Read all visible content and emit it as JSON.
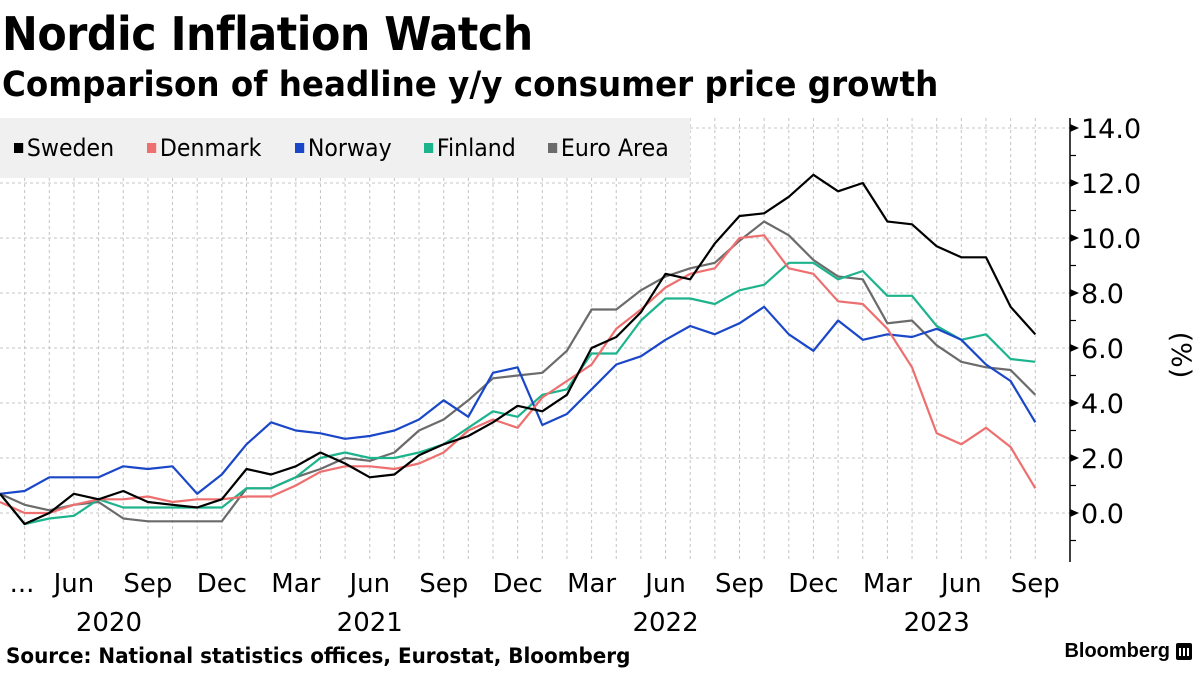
{
  "title": "Nordic Inflation Watch",
  "subtitle": "Comparison of headline y/y consumer price growth",
  "source": "Source: National statistics offices, Eurostat, Bloomberg",
  "brand": {
    "name": "Bloomberg",
    "icon": "bloomberg-chart-icon"
  },
  "chart_data": {
    "type": "line",
    "title": "Nordic Inflation Watch",
    "subtitle": "Comparison of headline y/y consumer price growth",
    "xlabel": "",
    "ylabel": "(%)",
    "ylim": [
      -1.9,
      14.5
    ],
    "yticks": [
      0.0,
      2.0,
      4.0,
      6.0,
      8.0,
      10.0,
      12.0,
      14.0
    ],
    "ytick_labels": [
      "0.0",
      "2.0",
      "4.0",
      "6.0",
      "8.0",
      "10.0",
      "12.0",
      "14.0"
    ],
    "grid": true,
    "legend_position": "top-left",
    "x": [
      "2020-03",
      "2020-04",
      "2020-05",
      "2020-06",
      "2020-07",
      "2020-08",
      "2020-09",
      "2020-10",
      "2020-11",
      "2020-12",
      "2021-01",
      "2021-02",
      "2021-03",
      "2021-04",
      "2021-05",
      "2021-06",
      "2021-07",
      "2021-08",
      "2021-09",
      "2021-10",
      "2021-11",
      "2021-12",
      "2022-01",
      "2022-02",
      "2022-03",
      "2022-04",
      "2022-05",
      "2022-06",
      "2022-07",
      "2022-08",
      "2022-09",
      "2022-10",
      "2022-11",
      "2022-12",
      "2023-01",
      "2023-02",
      "2023-03",
      "2023-04",
      "2023-05",
      "2023-06",
      "2023-07",
      "2023-08",
      "2023-09"
    ],
    "xtick_labels": [
      {
        "index": 0,
        "label": "..."
      },
      {
        "index": 3,
        "label": "Jun"
      },
      {
        "index": 6,
        "label": "Sep"
      },
      {
        "index": 9,
        "label": "Dec"
      },
      {
        "index": 12,
        "label": "Mar"
      },
      {
        "index": 15,
        "label": "Jun"
      },
      {
        "index": 18,
        "label": "Sep"
      },
      {
        "index": 21,
        "label": "Dec"
      },
      {
        "index": 24,
        "label": "Mar"
      },
      {
        "index": 27,
        "label": "Jun"
      },
      {
        "index": 30,
        "label": "Sep"
      },
      {
        "index": 33,
        "label": "Dec"
      },
      {
        "index": 36,
        "label": "Mar"
      },
      {
        "index": 39,
        "label": "Jun"
      },
      {
        "index": 42,
        "label": "Sep"
      }
    ],
    "year_labels": [
      {
        "index": 4.5,
        "label": "2020"
      },
      {
        "index": 15,
        "label": "2021"
      },
      {
        "index": 27,
        "label": "2022"
      },
      {
        "index": 38,
        "label": "2023"
      }
    ],
    "series": [
      {
        "name": "Sweden",
        "color": "#000000",
        "values": [
          0.7,
          -0.4,
          0.0,
          0.7,
          0.5,
          0.8,
          0.4,
          0.3,
          0.2,
          0.5,
          1.6,
          1.4,
          1.7,
          2.2,
          1.8,
          1.3,
          1.4,
          2.1,
          2.5,
          2.8,
          3.3,
          3.9,
          3.7,
          4.3,
          6.0,
          6.4,
          7.3,
          8.7,
          8.5,
          9.8,
          10.8,
          10.9,
          11.5,
          12.3,
          11.7,
          12.0,
          10.6,
          10.5,
          9.7,
          9.3,
          9.3,
          7.5,
          6.5
        ]
      },
      {
        "name": "Denmark",
        "color": "#ee6f6f",
        "values": [
          0.4,
          0.0,
          0.0,
          0.3,
          0.5,
          0.5,
          0.6,
          0.4,
          0.5,
          0.5,
          0.6,
          0.6,
          1.0,
          1.5,
          1.7,
          1.7,
          1.6,
          1.8,
          2.2,
          3.0,
          3.4,
          3.1,
          4.2,
          4.8,
          5.4,
          6.7,
          7.4,
          8.2,
          8.7,
          8.9,
          10.0,
          10.1,
          8.9,
          8.7,
          7.7,
          7.6,
          6.7,
          5.3,
          2.9,
          2.5,
          3.1,
          2.4,
          0.9
        ]
      },
      {
        "name": "Norway",
        "color": "#1a47c8",
        "values": [
          0.7,
          0.8,
          1.3,
          1.3,
          1.3,
          1.7,
          1.6,
          1.7,
          0.7,
          1.4,
          2.5,
          3.3,
          3.0,
          2.9,
          2.7,
          2.8,
          3.0,
          3.4,
          4.1,
          3.5,
          5.1,
          5.3,
          3.2,
          3.6,
          4.5,
          5.4,
          5.7,
          6.3,
          6.8,
          6.5,
          6.9,
          7.5,
          6.5,
          5.9,
          7.0,
          6.3,
          6.5,
          6.4,
          6.7,
          6.3,
          5.4,
          4.8,
          3.3
        ]
      },
      {
        "name": "Finland",
        "color": "#1db48d",
        "values": [
          0.7,
          -0.4,
          -0.2,
          -0.1,
          0.5,
          0.2,
          0.2,
          0.2,
          0.2,
          0.2,
          0.9,
          0.9,
          1.3,
          2.0,
          2.2,
          2.0,
          2.0,
          2.2,
          2.5,
          3.1,
          3.7,
          3.5,
          4.3,
          4.5,
          5.8,
          5.8,
          7.0,
          7.8,
          7.8,
          7.6,
          8.1,
          8.3,
          9.1,
          9.1,
          8.5,
          8.8,
          7.9,
          7.9,
          6.8,
          6.3,
          6.5,
          5.6,
          5.5
        ]
      },
      {
        "name": "Euro Area",
        "color": "#6b6b6b",
        "values": [
          0.7,
          0.3,
          0.1,
          0.3,
          0.4,
          -0.2,
          -0.3,
          -0.3,
          -0.3,
          -0.3,
          0.9,
          0.9,
          1.3,
          1.6,
          2.0,
          1.9,
          2.2,
          3.0,
          3.4,
          4.1,
          4.9,
          5.0,
          5.1,
          5.9,
          7.4,
          7.4,
          8.1,
          8.6,
          8.9,
          9.1,
          9.9,
          10.6,
          10.1,
          9.2,
          8.6,
          8.5,
          6.9,
          7.0,
          6.1,
          5.5,
          5.3,
          5.2,
          4.3
        ]
      }
    ]
  }
}
